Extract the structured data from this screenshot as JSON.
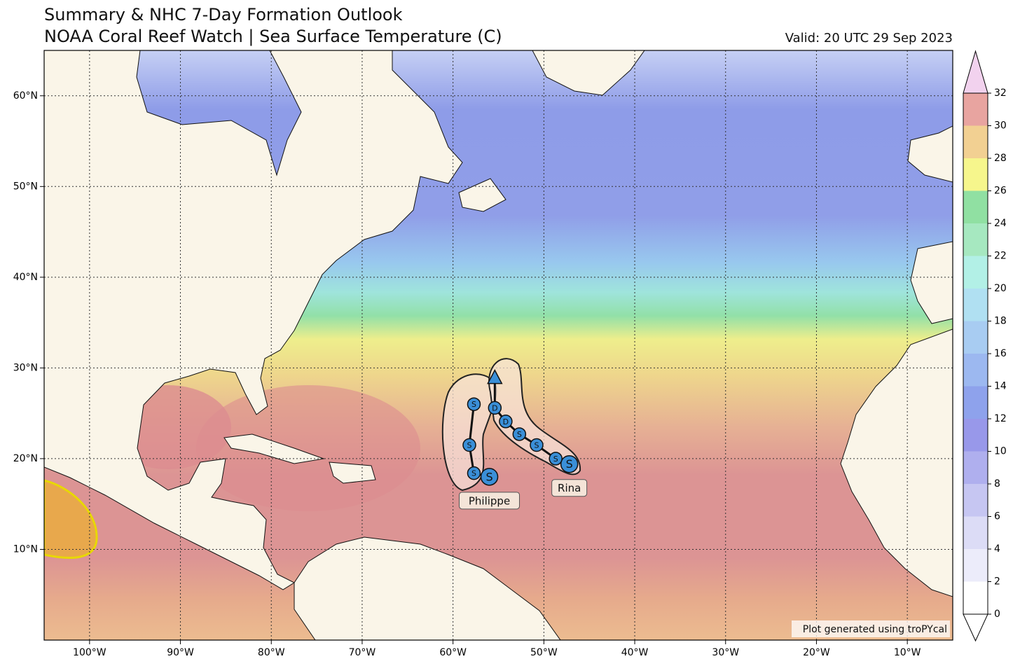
{
  "chart_data": {
    "type": "map",
    "title": "Summary & NHC 7-Day Formation Outlook",
    "subtitle": "NOAA Coral Reef Watch | Sea Surface Temperature (C)",
    "valid": "Valid: 20 UTC 29 Sep 2023",
    "credit": "Plot generated using troPYcal",
    "xlim": [
      -105,
      -5
    ],
    "ylim": [
      0,
      65
    ],
    "xticks": [
      {
        "value": -100,
        "label": "100°W"
      },
      {
        "value": -90,
        "label": "90°W"
      },
      {
        "value": -80,
        "label": "80°W"
      },
      {
        "value": -70,
        "label": "70°W"
      },
      {
        "value": -60,
        "label": "60°W"
      },
      {
        "value": -50,
        "label": "50°W"
      },
      {
        "value": -40,
        "label": "40°W"
      },
      {
        "value": -30,
        "label": "30°W"
      },
      {
        "value": -20,
        "label": "20°W"
      },
      {
        "value": -10,
        "label": "10°W"
      }
    ],
    "yticks": [
      {
        "value": 10,
        "label": "10°N"
      },
      {
        "value": 20,
        "label": "20°N"
      },
      {
        "value": 30,
        "label": "30°N"
      },
      {
        "value": 40,
        "label": "40°N"
      },
      {
        "value": 50,
        "label": "50°N"
      },
      {
        "value": 60,
        "label": "60°N"
      }
    ],
    "grid": true,
    "colorbar": {
      "range": [
        0,
        32
      ],
      "ticks": [
        0,
        2,
        4,
        6,
        8,
        10,
        12,
        14,
        16,
        18,
        20,
        22,
        24,
        26,
        28,
        30,
        32
      ],
      "colors": [
        "#ffffff",
        "#ececfa",
        "#dcdcf6",
        "#c6c6f2",
        "#afafee",
        "#9898ea",
        "#8ea2ec",
        "#9cb8f0",
        "#a8ccf2",
        "#b0e0f2",
        "#b2f0e6",
        "#a6e8c0",
        "#90e0a2",
        "#f6f68c",
        "#f2d092",
        "#e8a4a0"
      ],
      "under_color": "#ffffff",
      "over_color": "#f2d2ee"
    },
    "storms": [
      {
        "name": "Philippe",
        "color": "#3a8fd8",
        "points": [
          {
            "lon": -56.0,
            "lat": 18.0,
            "label": "S",
            "marker": "circle"
          },
          {
            "lon": -57.7,
            "lat": 18.4,
            "label": "S",
            "marker": "circle"
          },
          {
            "lon": -58.2,
            "lat": 21.5,
            "label": "S",
            "marker": "circle"
          },
          {
            "lon": -57.7,
            "lat": 26.0,
            "label": "S",
            "marker": "circle"
          }
        ]
      },
      {
        "name": "Rina",
        "color": "#3a8fd8",
        "points": [
          {
            "lon": -47.2,
            "lat": 19.4,
            "label": "S",
            "marker": "circle"
          },
          {
            "lon": -48.7,
            "lat": 20.0,
            "label": "S",
            "marker": "circle"
          },
          {
            "lon": -50.8,
            "lat": 21.5,
            "label": "S",
            "marker": "circle"
          },
          {
            "lon": -52.7,
            "lat": 22.7,
            "label": "S",
            "marker": "circle"
          },
          {
            "lon": -54.2,
            "lat": 24.1,
            "label": "D",
            "marker": "circle"
          },
          {
            "lon": -55.4,
            "lat": 25.6,
            "label": "D",
            "marker": "circle"
          },
          {
            "lon": -55.4,
            "lat": 28.9,
            "label": null,
            "marker": "triangle"
          }
        ]
      }
    ]
  }
}
